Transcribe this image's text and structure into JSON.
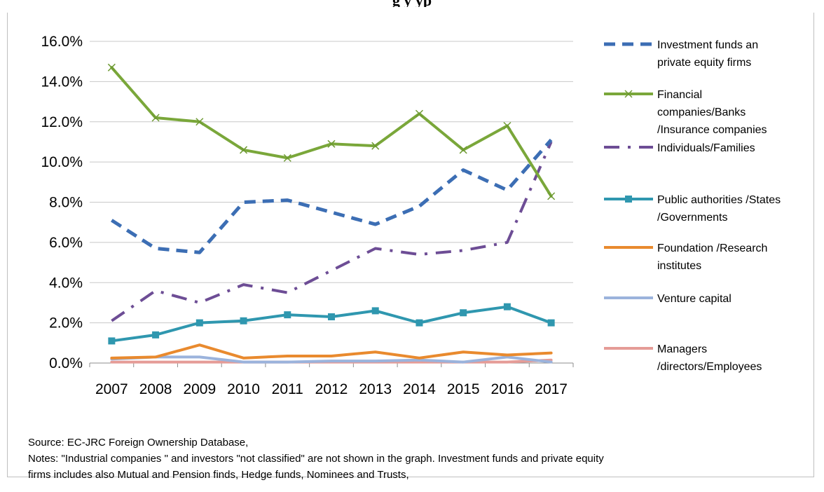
{
  "chart_data": {
    "type": "line",
    "title_fragment": "g                                         y  yp",
    "categories": [
      "2007",
      "2008",
      "2009",
      "2010",
      "2011",
      "2012",
      "2013",
      "2014",
      "2015",
      "2016",
      "2017"
    ],
    "y_ticks": [
      "0.0%",
      "2.0%",
      "4.0%",
      "6.0%",
      "8.0%",
      "10.0%",
      "12.0%",
      "14.0%",
      "16.0%"
    ],
    "ylim": [
      0,
      16
    ],
    "y_unit": "%",
    "grid": true,
    "legend_position": "right",
    "series": [
      {
        "name": "Investment funds an private equity firms",
        "legend_lines": [
          "Investment funds an",
          "private equity firms"
        ],
        "color": "#3c6eb4",
        "style": "long-dash",
        "marker": "none",
        "values": [
          7.1,
          5.7,
          5.5,
          8.0,
          8.1,
          7.5,
          6.9,
          7.8,
          9.6,
          8.6,
          11.1
        ]
      },
      {
        "name": "Financial companies/Banks /Insurance companies",
        "legend_lines": [
          "Financial",
          "companies/Banks",
          "/Insurance companies"
        ],
        "color": "#7aa73a",
        "style": "solid",
        "marker": "x",
        "values": [
          14.7,
          12.2,
          12.0,
          10.6,
          10.2,
          10.9,
          10.8,
          12.4,
          10.6,
          11.8,
          8.3
        ]
      },
      {
        "name": "Individuals/Families",
        "legend_lines": [
          "Individuals/Families"
        ],
        "color": "#6d4d95",
        "style": "dash-dot",
        "marker": "none",
        "values": [
          2.1,
          3.6,
          3.0,
          3.9,
          3.5,
          4.6,
          5.7,
          5.4,
          5.6,
          6.0,
          11.0
        ]
      },
      {
        "name": "Public authorities /States /Governments",
        "legend_lines": [
          "Public authorities /States",
          "/Governments"
        ],
        "color": "#2f97af",
        "style": "solid",
        "marker": "square",
        "values": [
          1.1,
          1.4,
          2.0,
          2.1,
          2.4,
          2.3,
          2.6,
          2.0,
          2.5,
          2.8,
          2.0
        ]
      },
      {
        "name": "Foundation /Research institutes",
        "legend_lines": [
          "Foundation /Research",
          "institutes"
        ],
        "color": "#e98a2e",
        "style": "solid",
        "marker": "none",
        "values": [
          0.25,
          0.3,
          0.9,
          0.25,
          0.35,
          0.35,
          0.55,
          0.25,
          0.55,
          0.4,
          0.5
        ]
      },
      {
        "name": "Venture capital",
        "legend_lines": [
          "Venture capital"
        ],
        "color": "#9bb3dc",
        "style": "solid",
        "marker": "none",
        "values": [
          0.2,
          0.3,
          0.3,
          0.05,
          0.05,
          0.1,
          0.1,
          0.15,
          0.05,
          0.3,
          0.05
        ]
      },
      {
        "name": "Managers /directors/Employees",
        "legend_lines": [
          "Managers",
          "/directors/Employees"
        ],
        "color": "#e59c97",
        "style": "solid",
        "marker": "none",
        "values": [
          0.05,
          0.05,
          0.05,
          0.05,
          0.05,
          0.05,
          0.05,
          0.05,
          0.05,
          0.05,
          0.15
        ]
      }
    ]
  },
  "notes": {
    "source": "Source: EC-JRC Foreign Ownership Database,",
    "notes_line1": "Notes:  \"Industrial companies \" and investors \"not classified\" are not shown in the graph.  Investment funds and private equity",
    "notes_line2": "firms includes also Mutual and Pension finds, Hedge funds, Nominees and Trusts,"
  }
}
